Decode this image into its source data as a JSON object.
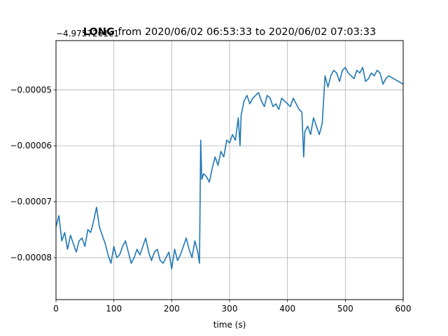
{
  "chart_data": {
    "type": "line",
    "title_bold": "LONG",
    "title_rest": " from 2020/06/02 06:53:33 to 2020/06/02 07:03:33",
    "offset_label": "−4.9757261e1",
    "xlabel": "time (s)",
    "ylabel": "",
    "xlim": [
      0,
      600
    ],
    "ylim": [
      -8.75e-05,
      -4.12e-05
    ],
    "xticks": [
      0,
      100,
      200,
      300,
      400,
      500,
      600
    ],
    "xtick_labels": [
      "0",
      "100",
      "200",
      "300",
      "400",
      "500",
      "600"
    ],
    "yticks": [
      -8e-05,
      -7e-05,
      -6e-05,
      -5e-05
    ],
    "ytick_labels": [
      "−0.00008",
      "−0.00007",
      "−0.00006",
      "−0.00005"
    ],
    "grid": true,
    "line_color": "#1f77b4",
    "series": [
      {
        "x": [
          0,
          5,
          10,
          15,
          20,
          25,
          30,
          35,
          40,
          45,
          50,
          55,
          60,
          65,
          70,
          75,
          80,
          85,
          90,
          95,
          100,
          105,
          110,
          115,
          120,
          125,
          130,
          135,
          140,
          145,
          150,
          155,
          160,
          165,
          170,
          175,
          180,
          185,
          190,
          195,
          200,
          205,
          210,
          215,
          220,
          225,
          230,
          235,
          240,
          245,
          248,
          250,
          252,
          255,
          260,
          265,
          270,
          275,
          280,
          285,
          290,
          295,
          300,
          305,
          310,
          315,
          318,
          320,
          325,
          330,
          335,
          340,
          345,
          350,
          355,
          360,
          365,
          370,
          375,
          380,
          385,
          390,
          395,
          400,
          405,
          410,
          415,
          420,
          425,
          428,
          430,
          435,
          440,
          445,
          450,
          455,
          460,
          465,
          470,
          475,
          480,
          485,
          490,
          495,
          500,
          505,
          510,
          515,
          520,
          525,
          530,
          535,
          540,
          545,
          550,
          555,
          560,
          565,
          570,
          575,
          600
        ],
        "y": [
          -7.45e-05,
          -7.25e-05,
          -7.7e-05,
          -7.55e-05,
          -7.85e-05,
          -7.6e-05,
          -7.75e-05,
          -7.9e-05,
          -7.7e-05,
          -7.65e-05,
          -7.8e-05,
          -7.5e-05,
          -7.55e-05,
          -7.35e-05,
          -7.1e-05,
          -7.45e-05,
          -7.6e-05,
          -7.75e-05,
          -7.95e-05,
          -8.1e-05,
          -7.8e-05,
          -8e-05,
          -7.95e-05,
          -7.8e-05,
          -7.7e-05,
          -7.9e-05,
          -8.1e-05,
          -8e-05,
          -7.85e-05,
          -7.95e-05,
          -7.8e-05,
          -7.65e-05,
          -7.9e-05,
          -8.05e-05,
          -7.9e-05,
          -7.85e-05,
          -8.05e-05,
          -8.1e-05,
          -8e-05,
          -7.9e-05,
          -8.2e-05,
          -7.85e-05,
          -8.05e-05,
          -7.95e-05,
          -7.8e-05,
          -7.65e-05,
          -7.85e-05,
          -8e-05,
          -7.7e-05,
          -7.9e-05,
          -8.1e-05,
          -5.9e-05,
          -6.6e-05,
          -6.5e-05,
          -6.55e-05,
          -6.65e-05,
          -6.4e-05,
          -6.2e-05,
          -6.35e-05,
          -6.1e-05,
          -6.2e-05,
          -5.9e-05,
          -5.95e-05,
          -5.8e-05,
          -5.9e-05,
          -5.5e-05,
          -6e-05,
          -5.45e-05,
          -5.2e-05,
          -5.1e-05,
          -5.25e-05,
          -5.15e-05,
          -5.1e-05,
          -5.05e-05,
          -5.2e-05,
          -5.3e-05,
          -5.1e-05,
          -5.15e-05,
          -5.3e-05,
          -5.25e-05,
          -5.35e-05,
          -5.15e-05,
          -5.2e-05,
          -5.25e-05,
          -5.3e-05,
          -5.15e-05,
          -5.25e-05,
          -5.35e-05,
          -5.4e-05,
          -6.2e-05,
          -5.75e-05,
          -5.65e-05,
          -5.8e-05,
          -5.5e-05,
          -5.65e-05,
          -5.8e-05,
          -5.6e-05,
          -4.75e-05,
          -4.95e-05,
          -4.75e-05,
          -4.65e-05,
          -4.7e-05,
          -4.85e-05,
          -4.65e-05,
          -4.6e-05,
          -4.7e-05,
          -4.75e-05,
          -4.8e-05,
          -4.65e-05,
          -4.7e-05,
          -4.6e-05,
          -4.85e-05,
          -4.8e-05,
          -4.7e-05,
          -4.75e-05,
          -4.65e-05,
          -4.7e-05,
          -4.9e-05,
          -4.8e-05,
          -4.75e-05,
          -4.9e-05
        ]
      }
    ]
  }
}
